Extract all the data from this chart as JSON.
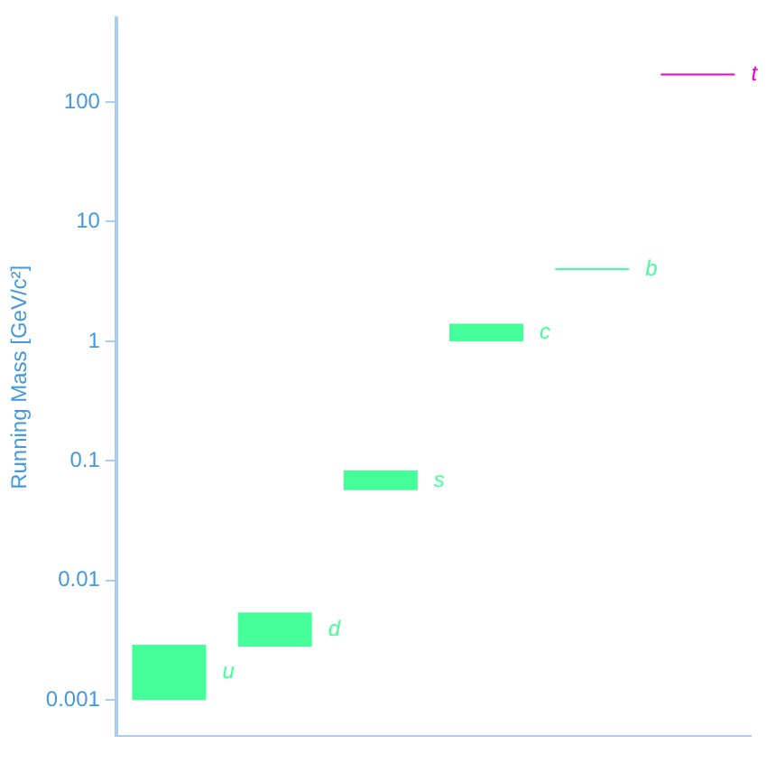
{
  "chart_data": {
    "type": "bar",
    "ylabel": "Running Mass [GeV/c²]",
    "categories": [
      null,
      null,
      null,
      null,
      null,
      null
    ],
    "series": [
      {
        "name": "u",
        "color": "#44ff99",
        "base": [
          0.001,
          null,
          null,
          null,
          null,
          null
        ],
        "values": [
          0.0019,
          null,
          null,
          null,
          null,
          null
        ]
      },
      {
        "name": "d",
        "color": "#44ff99",
        "base": [
          null,
          0.0028,
          null,
          null,
          null,
          null
        ],
        "values": [
          null,
          0.0026,
          null,
          null,
          null,
          null
        ]
      },
      {
        "name": "s",
        "color": "#44ff99",
        "base": [
          null,
          null,
          0.057,
          null,
          null,
          null
        ],
        "values": [
          null,
          null,
          0.026,
          null,
          null,
          null
        ]
      },
      {
        "name": "c",
        "color": "#44ff99",
        "base": [
          null,
          null,
          null,
          1.0,
          null,
          null
        ],
        "values": [
          null,
          null,
          null,
          0.4,
          null,
          null
        ]
      },
      {
        "name": "b",
        "color": "#44ff99",
        "base": [
          null,
          null,
          null,
          null,
          3.95,
          null
        ],
        "values": [
          null,
          null,
          null,
          null,
          0.1,
          null
        ]
      },
      {
        "name": "t",
        "color": "#ee00cc",
        "base": [
          null,
          null,
          null,
          null,
          null,
          167
        ],
        "values": [
          null,
          null,
          null,
          null,
          null,
          6
        ]
      }
    ],
    "log": true,
    "ylim": [
      0.0005,
      500
    ],
    "yticks": [
      0.001,
      0.01,
      0.1,
      1,
      10,
      100
    ],
    "grid": false,
    "legend": false,
    "tick_labels": "y"
  }
}
